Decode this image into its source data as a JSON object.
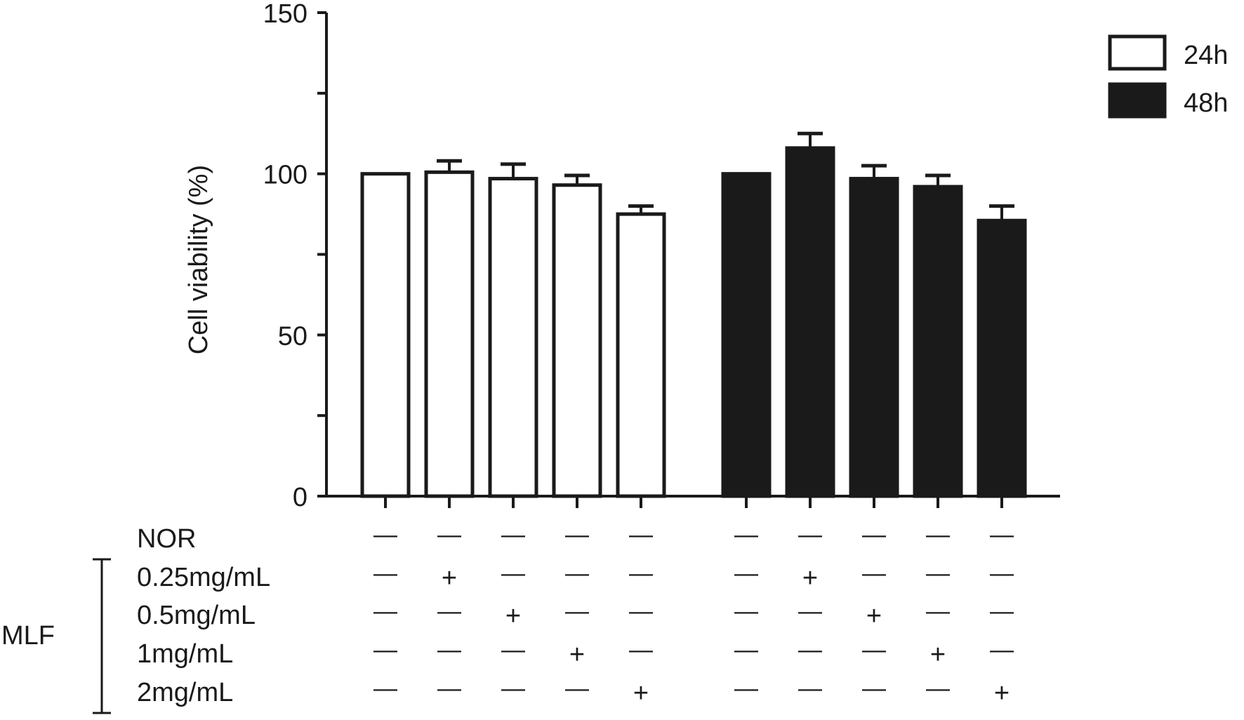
{
  "chart_data": {
    "type": "bar",
    "ylabel": "Cell viability (%)",
    "ylim": [
      0,
      150
    ],
    "y_ticks": [
      0,
      50,
      100,
      150
    ],
    "y_ticks_labeled": [
      "0",
      "50",
      "100",
      "150"
    ],
    "grid": false,
    "legend_position": "top-right",
    "series": [
      {
        "name": "24h",
        "fill": "#ffffff",
        "values": [
          100,
          100.5,
          98.5,
          96.5,
          87.5
        ],
        "errors": [
          0,
          3.5,
          4.5,
          3.0,
          2.5
        ]
      },
      {
        "name": "48h",
        "fill": "#1a1a1a",
        "values": [
          100,
          108,
          98.5,
          96,
          85.5
        ],
        "errors": [
          0,
          4.5,
          4.0,
          3.5,
          4.5
        ]
      }
    ],
    "conditions": {
      "rows": [
        {
          "label": "NOR",
          "marks": [
            "—",
            "—",
            "—",
            "—",
            "—",
            "—",
            "—",
            "—",
            "—",
            "—"
          ]
        },
        {
          "label": "0.25mg/mL",
          "marks": [
            "—",
            "+",
            "—",
            "—",
            "—",
            "—",
            "+",
            "—",
            "—",
            "—"
          ]
        },
        {
          "label": "0.5mg/mL",
          "marks": [
            "—",
            "—",
            "+",
            "—",
            "—",
            "—",
            "—",
            "+",
            "—",
            "—"
          ]
        },
        {
          "label": "1mg/mL",
          "marks": [
            "—",
            "—",
            "—",
            "+",
            "—",
            "—",
            "—",
            "—",
            "+",
            "—"
          ]
        },
        {
          "label": "2mg/mL",
          "marks": [
            "—",
            "—",
            "—",
            "—",
            "+",
            "—",
            "—",
            "—",
            "—",
            "+"
          ]
        }
      ],
      "group_label": "MLF"
    }
  }
}
